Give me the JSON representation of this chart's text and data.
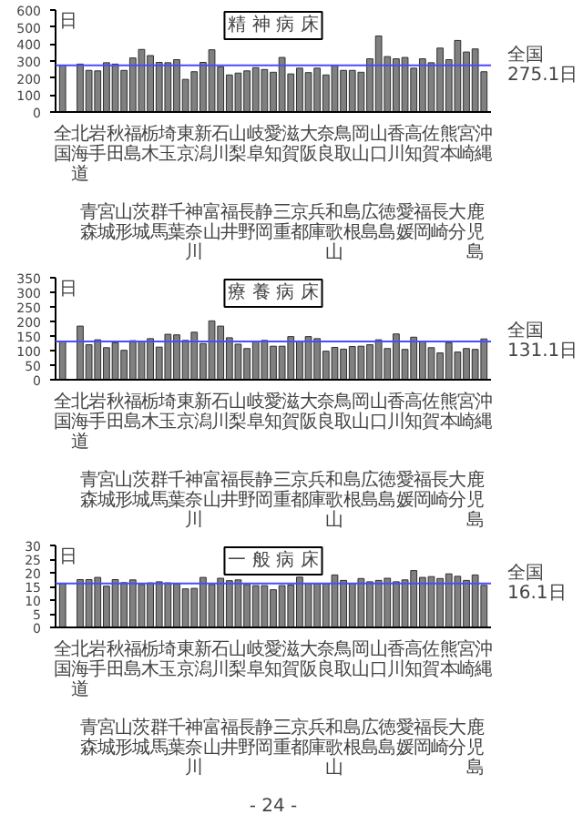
{
  "chart_data": [
    {
      "type": "bar",
      "title": "精 神 病 床",
      "ylabel": "日",
      "categories": [
        "全国",
        null,
        "北海道",
        "青森",
        "岩手",
        "宮城",
        "秋田",
        "山形",
        "福島",
        "茨城",
        "栃木",
        "群馬",
        "埼玉",
        "千葉",
        "東京",
        "神奈川",
        "新潟",
        "富山",
        "石川",
        "福井",
        "山梨",
        "長野",
        "岐阜",
        "静岡",
        "愛知",
        "三重",
        "滋賀",
        "京都",
        "大阪",
        "兵庫",
        "奈良",
        "和歌山",
        "鳥取",
        "島根",
        "岡山",
        "広島",
        "山口",
        "徳島",
        "香川",
        "愛媛",
        "高知",
        "福岡",
        "佐賀",
        "長崎",
        "熊本",
        "大分",
        "宮崎",
        "鹿児島",
        "沖縄"
      ],
      "values": [
        275,
        null,
        282,
        245,
        242,
        290,
        282,
        245,
        318,
        368,
        332,
        292,
        290,
        308,
        192,
        237,
        292,
        366,
        266,
        218,
        229,
        242,
        261,
        250,
        234,
        321,
        224,
        258,
        232,
        258,
        218,
        274,
        245,
        245,
        234,
        313,
        447,
        326,
        313,
        321,
        258,
        313,
        290,
        376,
        308,
        421,
        353,
        371,
        237
      ],
      "color": "#808080",
      "ylim": [
        0,
        600
      ],
      "yticks": [
        0,
        100,
        200,
        300,
        400,
        500,
        600
      ],
      "grid": false,
      "ref_lines": [
        {
          "axis": "y",
          "value": 275.1,
          "label": "全国\n275.1日",
          "color": "#4b4bff"
        }
      ]
    },
    {
      "type": "bar",
      "title": "療 養 病 床",
      "ylabel": "日",
      "categories": [
        "全国",
        null,
        "北海道",
        "青森",
        "岩手",
        "宮城",
        "秋田",
        "山形",
        "福島",
        "茨城",
        "栃木",
        "群馬",
        "埼玉",
        "千葉",
        "東京",
        "神奈川",
        "新潟",
        "富山",
        "石川",
        "福井",
        "山梨",
        "長野",
        "岐阜",
        "静岡",
        "愛知",
        "三重",
        "滋賀",
        "京都",
        "大阪",
        "兵庫",
        "奈良",
        "和歌山",
        "鳥取",
        "島根",
        "岡山",
        "広島",
        "山口",
        "徳島",
        "香川",
        "愛媛",
        "高知",
        "福岡",
        "佐賀",
        "長崎",
        "熊本",
        "大分",
        "宮崎",
        "鹿児島",
        "沖縄"
      ],
      "values": [
        131,
        null,
        184,
        120,
        137,
        110,
        127,
        101,
        134,
        131,
        141,
        112,
        156,
        154,
        135,
        163,
        124,
        202,
        184,
        144,
        122,
        107,
        130,
        135,
        115,
        115,
        148,
        133,
        148,
        141,
        98,
        111,
        105,
        114,
        115,
        120,
        137,
        107,
        157,
        104,
        146,
        131,
        110,
        92,
        127,
        95,
        107,
        104,
        140
      ],
      "color": "#808080",
      "ylim": [
        0,
        350
      ],
      "yticks": [
        0,
        50,
        100,
        150,
        200,
        250,
        300,
        350
      ],
      "grid": false,
      "ref_lines": [
        {
          "axis": "y",
          "value": 131.1,
          "label": "全国\n131.1日",
          "color": "#4b4bff"
        }
      ]
    },
    {
      "type": "bar",
      "title": "一 般 病 床",
      "ylabel": "日",
      "categories": [
        "全国",
        null,
        "北海道",
        "青森",
        "岩手",
        "宮城",
        "秋田",
        "山形",
        "福島",
        "茨城",
        "栃木",
        "群馬",
        "埼玉",
        "千葉",
        "東京",
        "神奈川",
        "新潟",
        "富山",
        "石川",
        "福井",
        "山梨",
        "長野",
        "岐阜",
        "静岡",
        "愛知",
        "三重",
        "滋賀",
        "京都",
        "大阪",
        "兵庫",
        "奈良",
        "和歌山",
        "鳥取",
        "島根",
        "岡山",
        "広島",
        "山口",
        "徳島",
        "香川",
        "愛媛",
        "高知",
        "福岡",
        "佐賀",
        "長崎",
        "熊本",
        "大分",
        "宮崎",
        "鹿児島",
        "沖縄"
      ],
      "values": [
        16.1,
        null,
        17.5,
        17.5,
        18.3,
        15.1,
        17.5,
        16.4,
        17.4,
        15.7,
        16.3,
        16.7,
        16.3,
        15.9,
        14.1,
        14.3,
        18.3,
        15.7,
        18.0,
        17.1,
        17.4,
        15.7,
        15.3,
        15.3,
        13.8,
        15.3,
        15.5,
        18.4,
        16.1,
        16.1,
        16.1,
        19.2,
        17.2,
        16.1,
        17.9,
        16.7,
        17.2,
        18.0,
        16.7,
        17.4,
        20.8,
        18.3,
        18.6,
        17.9,
        19.6,
        18.7,
        17.2,
        19.2,
        15.4
      ],
      "color": "#808080",
      "ylim": [
        0,
        30
      ],
      "yticks": [
        0,
        5,
        10,
        15,
        20,
        25,
        30
      ],
      "grid": false,
      "ref_lines": [
        {
          "axis": "y",
          "value": 16.1,
          "label": "全国\n16.1日",
          "color": "#4b4bff"
        }
      ],
      "annotations": [
        "- 24 -"
      ]
    }
  ]
}
